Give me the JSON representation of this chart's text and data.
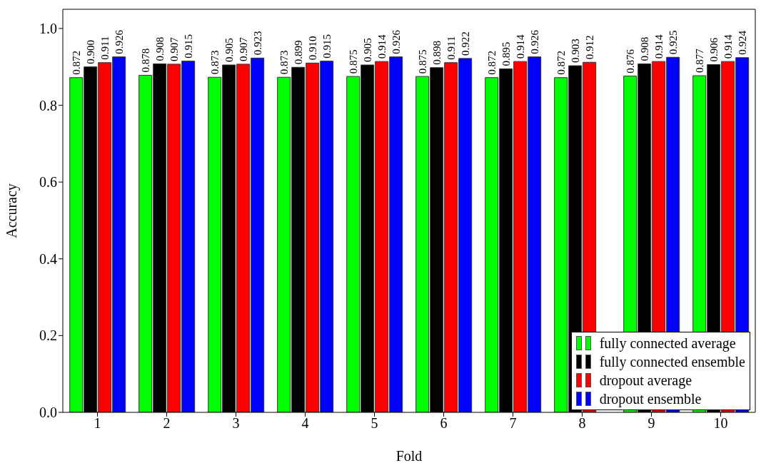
{
  "chart_data": {
    "type": "bar",
    "xlabel": "Fold",
    "ylabel": "Accuracy",
    "categories": [
      "1",
      "2",
      "3",
      "4",
      "5",
      "6",
      "7",
      "8",
      "9",
      "10"
    ],
    "series": [
      {
        "name": "fully connected average",
        "color": "#00ff00",
        "values": [
          0.872,
          0.878,
          0.873,
          0.873,
          0.875,
          0.875,
          0.872,
          0.872,
          0.876,
          0.877
        ],
        "value_labels": [
          "0.872",
          "0.878",
          "0.873",
          "0.873",
          "0.875",
          "0.875",
          "0.872",
          "0.872",
          "0.876",
          "0.877"
        ]
      },
      {
        "name": "fully connected ensemble",
        "color": "#000000",
        "values": [
          0.9,
          0.908,
          0.905,
          0.899,
          0.905,
          0.898,
          0.895,
          0.903,
          0.908,
          0.906
        ],
        "value_labels": [
          "0.900",
          "0.908",
          "0.905",
          "0.899",
          "0.905",
          "0.898",
          "0.895",
          "0.903",
          "0.908",
          "0.906"
        ]
      },
      {
        "name": "dropout average",
        "color": "#ff0000",
        "values": [
          0.911,
          0.907,
          0.907,
          0.91,
          0.914,
          0.911,
          0.914,
          0.912,
          0.914,
          0.914
        ],
        "value_labels": [
          "0.911",
          "0.907",
          "0.907",
          "0.910",
          "0.914",
          "0.911",
          "0.914",
          "0.912",
          "0.914",
          "0.914"
        ]
      },
      {
        "name": "dropout ensemble",
        "color": "#0000ff",
        "values": [
          0.926,
          0.915,
          0.923,
          0.915,
          0.926,
          0.922,
          0.926,
          null,
          0.925,
          0.924
        ],
        "value_labels": [
          "0.926",
          "0.915",
          "0.923",
          "0.915",
          "0.926",
          "0.922",
          "0.926",
          null,
          "0.925",
          "0.924"
        ]
      }
    ],
    "ylim": [
      0,
      1.05
    ],
    "yticks": [
      {
        "value": 0.0,
        "label": "0.0"
      },
      {
        "value": 0.2,
        "label": "0.2"
      },
      {
        "value": 0.4,
        "label": "0.4"
      },
      {
        "value": 0.6,
        "label": "0.6"
      },
      {
        "value": 0.8,
        "label": "0.8"
      },
      {
        "value": 1.0,
        "label": "1.0"
      }
    ],
    "legend": "bottom right"
  }
}
